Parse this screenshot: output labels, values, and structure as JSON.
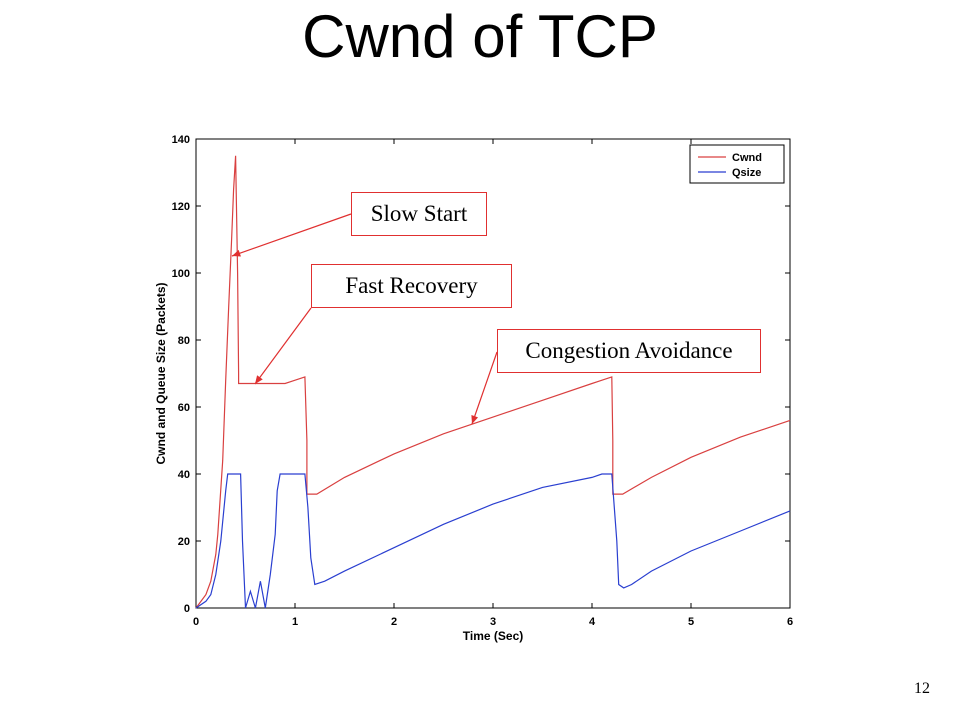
{
  "slide": {
    "title": "Cwnd of TCP",
    "page_number": "12"
  },
  "callouts": {
    "slow_start": "Slow Start",
    "fast_recovery": "Fast Recovery",
    "congestion_avoidance": "Congestion Avoidance"
  },
  "colors": {
    "cwnd": "#d94040",
    "qsize": "#2a3fd0",
    "callout_border": "#e03030"
  },
  "chart_data": {
    "type": "line",
    "title": "",
    "xlabel": "Time (Sec)",
    "ylabel": "Cwnd and Queue Size (Packets)",
    "xlim": [
      0,
      6
    ],
    "ylim": [
      0,
      140
    ],
    "xticks": [
      "0",
      "1",
      "2",
      "3",
      "4",
      "5",
      "6"
    ],
    "yticks": [
      "0",
      "20",
      "40",
      "60",
      "80",
      "100",
      "120",
      "140"
    ],
    "legend_position": "top-right",
    "grid": false,
    "series": [
      {
        "name": "Cwnd",
        "x": [
          0,
          0.1,
          0.15,
          0.2,
          0.22,
          0.27,
          0.3,
          0.33,
          0.36,
          0.38,
          0.4,
          0.42,
          0.43,
          0.43,
          0.6,
          0.9,
          1.1,
          1.12,
          1.12,
          1.22,
          1.5,
          2.0,
          2.5,
          3.0,
          3.5,
          4.0,
          4.2,
          4.21,
          4.21,
          4.31,
          4.6,
          5.0,
          5.5,
          6.0
        ],
        "y": [
          0,
          4,
          8,
          16,
          22,
          44,
          68,
          90,
          110,
          125,
          135,
          100,
          70,
          67,
          67,
          67,
          69,
          50,
          34,
          34,
          39,
          46,
          52,
          57,
          62,
          67,
          69,
          50,
          34,
          34,
          39,
          45,
          51,
          56
        ]
      },
      {
        "name": "Qsize",
        "x": [
          0,
          0.1,
          0.15,
          0.2,
          0.25,
          0.3,
          0.32,
          0.35,
          0.45,
          0.47,
          0.5,
          0.55,
          0.6,
          0.65,
          0.7,
          0.75,
          0.8,
          0.82,
          0.85,
          0.95,
          1.05,
          1.1,
          1.13,
          1.16,
          1.2,
          1.3,
          1.5,
          2.0,
          2.5,
          3.0,
          3.5,
          4.0,
          4.1,
          4.2,
          4.25,
          4.27,
          4.32,
          4.4,
          4.6,
          5.0,
          5.5,
          6.0
        ],
        "y": [
          0,
          2,
          4,
          10,
          20,
          35,
          40,
          40,
          40,
          20,
          0,
          5,
          0,
          8,
          0,
          10,
          22,
          35,
          40,
          40,
          40,
          40,
          30,
          15,
          7,
          8,
          11,
          18,
          25,
          31,
          36,
          39,
          40,
          40,
          20,
          7,
          6,
          7,
          11,
          17,
          23,
          29
        ]
      }
    ]
  }
}
